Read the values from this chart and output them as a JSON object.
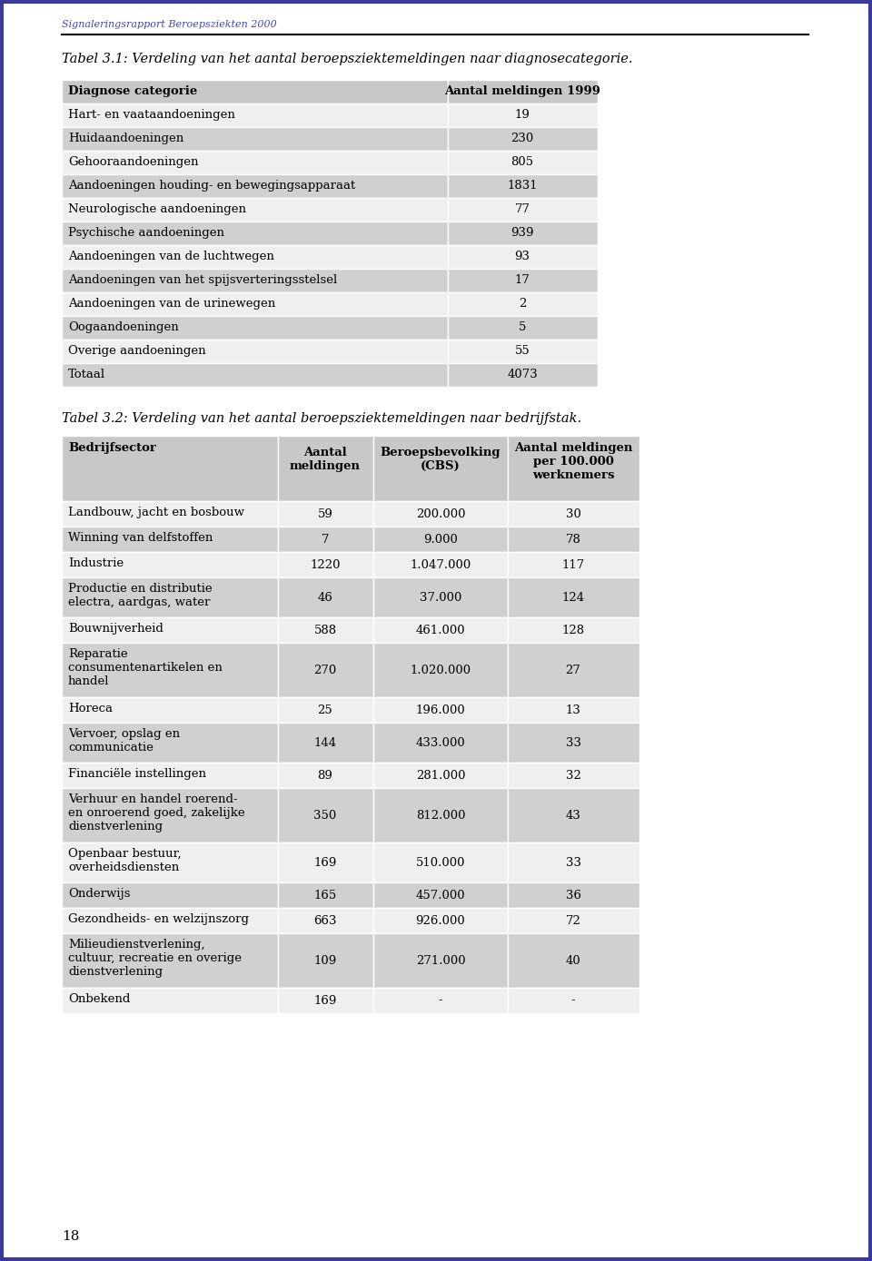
{
  "page_bg": "#ffffff",
  "border_color": "#3a3a9a",
  "header_text": "Signaleringsrapport Beroepsziekten 2000",
  "header_color": "#4444bb",
  "page_number": "18",
  "table1_caption": "Tabel 3.1: Verdeling van het aantal beroepsziektemeldingen naar diagnosecategorie.",
  "table2_caption": "Tabel 3.2: Verdeling van het aantal beroepsziektemeldingen naar bedrijfstak.",
  "table1_header": [
    "Diagnose categorie",
    "Aantal meldingen 1999"
  ],
  "table1_rows": [
    [
      "Hart- en vaataandoeningen",
      "19",
      false
    ],
    [
      "Huidaandoeningen",
      "230",
      true
    ],
    [
      "Gehooraandoeningen",
      "805",
      false
    ],
    [
      "Aandoeningen houding- en bewegingsapparaat",
      "1831",
      true
    ],
    [
      "Neurologische aandoeningen",
      "77",
      false
    ],
    [
      "Psychische aandoeningen",
      "939",
      true
    ],
    [
      "Aandoeningen van de luchtwegen",
      "93",
      false
    ],
    [
      "Aandoeningen van het spijsverteringsstelsel",
      "17",
      true
    ],
    [
      "Aandoeningen van de urinewegen",
      "2",
      false
    ],
    [
      "Oogaandoeningen",
      "5",
      true
    ],
    [
      "Overige aandoeningen",
      "55",
      false
    ],
    [
      "Totaal",
      "4073",
      true
    ]
  ],
  "table2_header": [
    "Bedrijfsector",
    "Aantal\nmeldingen",
    "Beroepsbevolking\n(CBS)",
    "Aantal meldingen\nper 100.000\nwerknemers"
  ],
  "table2_rows": [
    [
      "Landbouw, jacht en bosbouw",
      "59",
      "200.000",
      "30",
      false
    ],
    [
      "Winning van delfstoffen",
      "7",
      "9.000",
      "78",
      true
    ],
    [
      "Industrie",
      "1220",
      "1.047.000",
      "117",
      false
    ],
    [
      "Productie en distributie\nelectra, aardgas, water",
      "46",
      "37.000",
      "124",
      true
    ],
    [
      "Bouwnijverheid",
      "588",
      "461.000",
      "128",
      false
    ],
    [
      "Reparatie\nconsumentenartikelen en\nhandel",
      "270",
      "1.020.000",
      "27",
      true
    ],
    [
      "Horeca",
      "25",
      "196.000",
      "13",
      false
    ],
    [
      "Vervoer, opslag en\ncommunicatie",
      "144",
      "433.000",
      "33",
      true
    ],
    [
      "Financiële instellingen",
      "89",
      "281.000",
      "32",
      false
    ],
    [
      "Verhuur en handel roerend-\nen onroerend goed, zakelijke\ndienstverlening",
      "350",
      "812.000",
      "43",
      true
    ],
    [
      "Openbaar bestuur,\noverheidsdiensten",
      "169",
      "510.000",
      "33",
      false
    ],
    [
      "Onderwijs",
      "165",
      "457.000",
      "36",
      true
    ],
    [
      "Gezondheids- en welzijnszorg",
      "663",
      "926.000",
      "72",
      false
    ],
    [
      "Milieudienstverlening,\ncultuur, recreatie en overige\ndienstverlening",
      "109",
      "271.000",
      "40",
      true
    ],
    [
      "Onbekend",
      "169",
      "-",
      "-",
      false
    ]
  ],
  "row_bg_light": "#efefef",
  "row_bg_dark": "#d0d0d0",
  "header_bg": "#c8c8c8",
  "text_color": "#000000"
}
